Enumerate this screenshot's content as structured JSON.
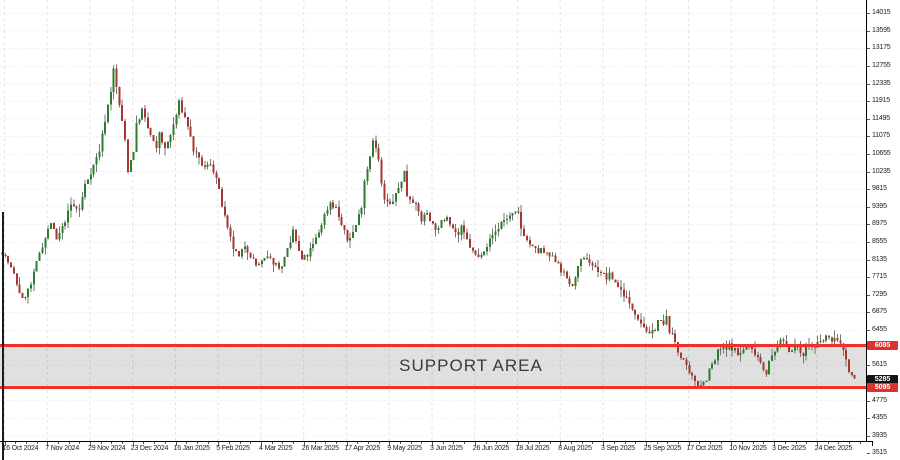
{
  "chart_data": {
    "type": "candlestick",
    "annotation": "SUPPORT AREA",
    "x_axis": {
      "labels": [
        "16 Oct 2024",
        "7 Nov 2024",
        "29 Nov 2024",
        "23 Dec 2024",
        "16 Jan 2025",
        "5 Feb 2025",
        "4 Mar 2025",
        "26 Mar 2025",
        "17 Apr 2025",
        "9 May 2025",
        "3 Jun 2025",
        "26 Jun 2025",
        "18 Jul 2025",
        "8 Aug 2025",
        "3 Sep 2025",
        "25 Sep 2025",
        "17 Oct 2025",
        "10 Nov 2025",
        "3 Dec 2025",
        "24 Dec 2025"
      ]
    },
    "y_axis": {
      "labels": [
        14015,
        13595,
        13175,
        12755,
        12335,
        11915,
        11495,
        11075,
        10655,
        10235,
        9815,
        9395,
        8975,
        8555,
        8135,
        7715,
        7295,
        6875,
        6455,
        6035,
        5615,
        5195,
        4775,
        4355,
        3935,
        3515
      ],
      "price_max": 14331,
      "price_min": 3809
    },
    "support_area": {
      "top_price": 6085,
      "bottom_price": 5095,
      "top_tag": "6085",
      "bottom_tag": "5095"
    },
    "current_price": {
      "price": 5285,
      "display": "5285"
    },
    "candles": {
      "count": 300,
      "seed": 7,
      "jitter": 140,
      "anchors": [
        [
          0,
          8315
        ],
        [
          2,
          8075
        ],
        [
          4,
          7765
        ],
        [
          7,
          7170
        ],
        [
          10,
          7530
        ],
        [
          13,
          8315
        ],
        [
          15,
          8650
        ],
        [
          17,
          9030
        ],
        [
          19,
          8600
        ],
        [
          21,
          8890
        ],
        [
          24,
          9435
        ],
        [
          27,
          9320
        ],
        [
          29,
          9915
        ],
        [
          32,
          10390
        ],
        [
          34,
          10750
        ],
        [
          36,
          11465
        ],
        [
          38,
          12180
        ],
        [
          39,
          12660
        ],
        [
          41,
          11825
        ],
        [
          43,
          10990
        ],
        [
          44,
          10275
        ],
        [
          46,
          10750
        ],
        [
          47,
          11345
        ],
        [
          49,
          11705
        ],
        [
          51,
          11275
        ],
        [
          54,
          10750
        ],
        [
          55,
          11180
        ],
        [
          57,
          10750
        ],
        [
          59,
          11110
        ],
        [
          61,
          11585
        ],
        [
          62,
          11870
        ],
        [
          65,
          11345
        ],
        [
          67,
          10750
        ],
        [
          69,
          10510
        ],
        [
          71,
          10320
        ],
        [
          73,
          10440
        ],
        [
          75,
          10080
        ],
        [
          77,
          9435
        ],
        [
          79,
          8840
        ],
        [
          81,
          8410
        ],
        [
          83,
          8175
        ],
        [
          85,
          8485
        ],
        [
          87,
          8245
        ],
        [
          89,
          8005
        ],
        [
          91,
          8075
        ],
        [
          93,
          8175
        ],
        [
          95,
          8075
        ],
        [
          98,
          7935
        ],
        [
          99,
          8245
        ],
        [
          101,
          8485
        ],
        [
          102,
          8840
        ],
        [
          104,
          8315
        ],
        [
          105,
          8125
        ],
        [
          107,
          8245
        ],
        [
          109,
          8485
        ],
        [
          111,
          8795
        ],
        [
          113,
          9200
        ],
        [
          115,
          9510
        ],
        [
          117,
          9365
        ],
        [
          119,
          8960
        ],
        [
          121,
          8600
        ],
        [
          123,
          8790
        ],
        [
          124,
          8960
        ],
        [
          126,
          9435
        ],
        [
          127,
          10035
        ],
        [
          129,
          10630
        ],
        [
          130,
          11035
        ],
        [
          132,
          10510
        ],
        [
          133,
          9915
        ],
        [
          134,
          9555
        ],
        [
          136,
          9435
        ],
        [
          138,
          9675
        ],
        [
          139,
          9845
        ],
        [
          141,
          10225
        ],
        [
          142,
          9675
        ],
        [
          144,
          9555
        ],
        [
          146,
          9270
        ],
        [
          147,
          9080
        ],
        [
          149,
          9270
        ],
        [
          151,
          8960
        ],
        [
          153,
          8840
        ],
        [
          154,
          9030
        ],
        [
          156,
          9200
        ],
        [
          158,
          8890
        ],
        [
          160,
          8720
        ],
        [
          161,
          8890
        ],
        [
          163,
          8600
        ],
        [
          165,
          8315
        ],
        [
          167,
          8175
        ],
        [
          168,
          8315
        ],
        [
          170,
          8485
        ],
        [
          172,
          8720
        ],
        [
          174,
          8890
        ],
        [
          175,
          9030
        ],
        [
          177,
          9130
        ],
        [
          179,
          9200
        ],
        [
          181,
          9245
        ],
        [
          182,
          8890
        ],
        [
          184,
          8600
        ],
        [
          186,
          8410
        ],
        [
          188,
          8315
        ],
        [
          189,
          8365
        ],
        [
          191,
          8245
        ],
        [
          193,
          8175
        ],
        [
          195,
          8075
        ],
        [
          196,
          7885
        ],
        [
          198,
          7695
        ],
        [
          200,
          7455
        ],
        [
          201,
          7765
        ],
        [
          203,
          8075
        ],
        [
          205,
          8175
        ],
        [
          206,
          8075
        ],
        [
          208,
          7935
        ],
        [
          210,
          7840
        ],
        [
          212,
          7695
        ],
        [
          213,
          7765
        ],
        [
          215,
          7600
        ],
        [
          217,
          7410
        ],
        [
          219,
          7220
        ],
        [
          220,
          7050
        ],
        [
          222,
          6885
        ],
        [
          224,
          6645
        ],
        [
          226,
          6455
        ],
        [
          227,
          6310
        ],
        [
          229,
          6505
        ],
        [
          230,
          6695
        ],
        [
          232,
          6575
        ],
        [
          233,
          6740
        ],
        [
          234,
          6455
        ],
        [
          236,
          6170
        ],
        [
          237,
          5930
        ],
        [
          239,
          5740
        ],
        [
          240,
          5550
        ],
        [
          241,
          5380
        ],
        [
          243,
          5260
        ],
        [
          244,
          5140
        ],
        [
          246,
          5215
        ],
        [
          247,
          5310
        ],
        [
          248,
          5500
        ],
        [
          250,
          5740
        ],
        [
          251,
          5930
        ],
        [
          253,
          6075
        ],
        [
          254,
          5980
        ],
        [
          255,
          6095
        ],
        [
          257,
          5980
        ],
        [
          258,
          5860
        ],
        [
          260,
          5980
        ],
        [
          261,
          6095
        ],
        [
          262,
          6025
        ],
        [
          264,
          5930
        ],
        [
          265,
          5835
        ],
        [
          267,
          5550
        ],
        [
          268,
          5455
        ],
        [
          269,
          5690
        ],
        [
          271,
          5930
        ],
        [
          272,
          6120
        ],
        [
          274,
          6215
        ],
        [
          275,
          6095
        ],
        [
          276,
          5980
        ],
        [
          278,
          6075
        ],
        [
          279,
          5980
        ],
        [
          281,
          5905
        ],
        [
          282,
          6025
        ],
        [
          283,
          6120
        ],
        [
          285,
          6025
        ],
        [
          286,
          6120
        ],
        [
          288,
          6215
        ],
        [
          289,
          6310
        ],
        [
          290,
          6215
        ],
        [
          292,
          6265
        ],
        [
          293,
          6170
        ],
        [
          295,
          6025
        ],
        [
          296,
          5740
        ],
        [
          297,
          5455
        ],
        [
          299,
          5285
        ]
      ]
    },
    "colors": {
      "up": "#2a7e2a",
      "down": "#a93430",
      "wick": "#757575",
      "grid": "rgba(0,0,0,0.10)",
      "support_line": "#f2302a",
      "band": "rgba(60,60,60,0.155)",
      "tag_red": "#e03131",
      "tag_black": "#141414",
      "axis_text": "#1c1c1c"
    }
  }
}
